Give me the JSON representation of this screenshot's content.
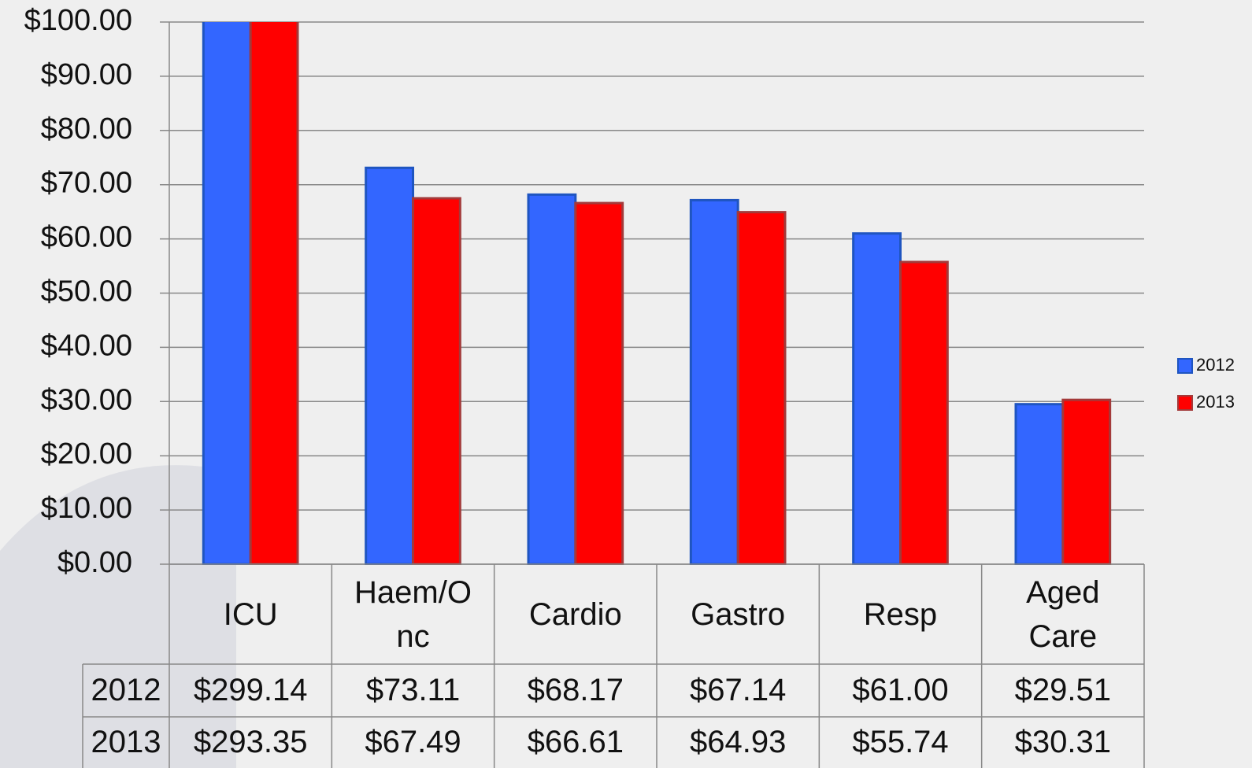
{
  "chart_data": {
    "type": "bar",
    "categories": [
      "ICU",
      "Haem/Onc",
      "Cardio",
      "Gastro",
      "Resp",
      "Aged Care"
    ],
    "series": [
      {
        "name": "2012",
        "color": "#3366ff",
        "values": [
          299.14,
          73.11,
          68.17,
          67.14,
          61.0,
          29.51
        ],
        "value_labels": [
          "$299.14",
          "$73.11",
          "$68.17",
          "$67.14",
          "$61.00",
          "$29.51"
        ]
      },
      {
        "name": "2013",
        "color": "#ff0000",
        "values": [
          293.35,
          67.49,
          66.61,
          64.93,
          55.74,
          30.31
        ],
        "value_labels": [
          "$293.35",
          "$67.49",
          "$66.61",
          "$64.93",
          "$55.74",
          "$30.31"
        ]
      }
    ],
    "ylim": [
      0,
      100
    ],
    "yticks": [
      {
        "value": 0,
        "label": "$0.00"
      },
      {
        "value": 10,
        "label": "$10.00"
      },
      {
        "value": 20,
        "label": "$20.00"
      },
      {
        "value": 30,
        "label": "$30.00"
      },
      {
        "value": 40,
        "label": "$40.00"
      },
      {
        "value": 50,
        "label": "$50.00"
      },
      {
        "value": 60,
        "label": "$60.00"
      },
      {
        "value": 70,
        "label": "$70.00"
      },
      {
        "value": 80,
        "label": "$80.00"
      },
      {
        "value": 90,
        "label": "$90.00"
      },
      {
        "value": 100,
        "label": "$100.00"
      }
    ],
    "grid": true,
    "legend": "right"
  }
}
